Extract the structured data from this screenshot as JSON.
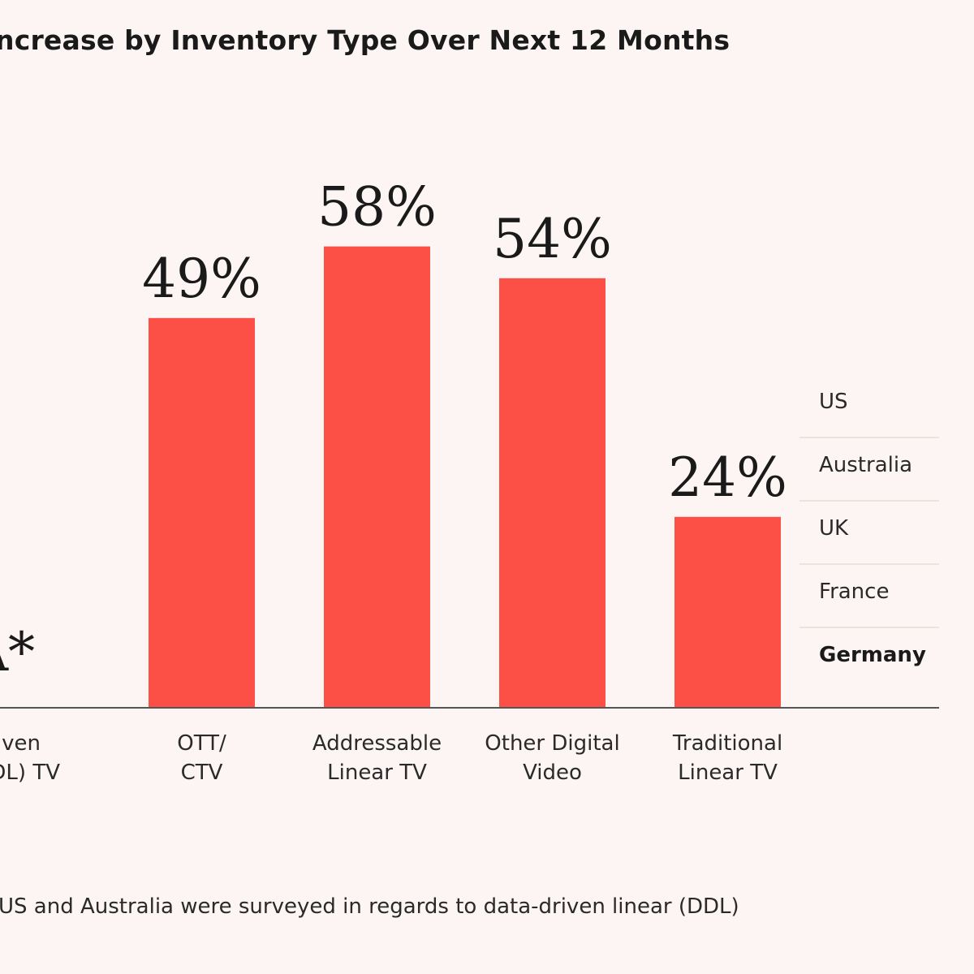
{
  "title": "ncrease by Inventory Type Over Next 12 Months",
  "footnote": "US and Australia were surveyed in regards to data-driven linear (DDL)",
  "legend": {
    "items": [
      "US",
      "Australia",
      "UK",
      "France",
      "Germany"
    ],
    "selected": "Germany"
  },
  "colors": {
    "bar": "#fc4f45",
    "background": "#fcf5f3",
    "axis": "#555555"
  },
  "chart_data": {
    "type": "bar",
    "categories": [
      [
        "ven",
        "DL) TV"
      ],
      [
        "OTT/",
        "CTV"
      ],
      [
        "Addressable",
        "Linear TV"
      ],
      [
        "Other Digital",
        "Video"
      ],
      [
        "Traditional",
        "Linear TV"
      ]
    ],
    "values": [
      null,
      49,
      58,
      54,
      24
    ],
    "value_labels": [
      "A*",
      "49%",
      "58%",
      "54%",
      "24%"
    ],
    "ylim": [
      0,
      100
    ],
    "grid": false,
    "legend_placement": "right"
  }
}
